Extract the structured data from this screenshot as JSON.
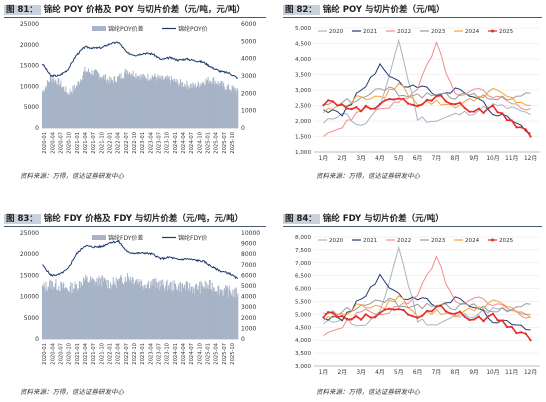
{
  "source_label": "资料来源：万得，信达证券研发中心",
  "months": [
    "1月",
    "2月",
    "3月",
    "4月",
    "5月",
    "6月",
    "7月",
    "8月",
    "9月",
    "10月",
    "11月",
    "12月"
  ],
  "years": [
    "2020",
    "2021",
    "2022",
    "2023",
    "2024",
    "2025"
  ],
  "year_colors": {
    "2020": "#aab3c2",
    "2021": "#1f3a6e",
    "2022": "#f28c8c",
    "2023": "#9a9a9a",
    "2024": "#f2a23a",
    "2025": "#e52b2b"
  },
  "panels": [
    {
      "id": "p81",
      "label": "图 81：",
      "title": "锦纶 POY 价格及 POY 与切片价差（元/吨，元/吨）"
    },
    {
      "id": "p82",
      "label": "图 82：",
      "title": "锦纶 POY 与切片价差（元/吨）"
    },
    {
      "id": "p83",
      "label": "图 83：",
      "title": "锦纶 FDY 价格及 FDY 与切片价差（元/吨，元/吨）"
    },
    {
      "id": "p84",
      "label": "图 84：",
      "title": "锦纶 FDY 与切片价差（元/吨）"
    }
  ],
  "chart_data": [
    {
      "type": "area+line",
      "legend": [
        "锦纶POY价差",
        "锦纶POY价"
      ],
      "x": [
        "2020-01",
        "2020-04",
        "2020-07",
        "2020-10",
        "2021-01",
        "2021-04",
        "2021-07",
        "2021-10",
        "2022-01",
        "2022-04",
        "2022-07",
        "2022-10",
        "2023-01",
        "2023-04",
        "2023-07",
        "2023-10",
        "2024-01",
        "2024-04",
        "2024-07",
        "2024-10",
        "2025-01",
        "2025-04",
        "2025-07",
        "2025-10"
      ],
      "series": [
        {
          "name": "锦纶POY价差",
          "axis": "right",
          "values": [
            2100,
            2900,
            2600,
            2000,
            2400,
            3300,
            3200,
            3000,
            2700,
            2900,
            3300,
            3100,
            2900,
            3000,
            2800,
            2800,
            2600,
            2500,
            2400,
            2700,
            2800,
            2500,
            2300,
            2200
          ]
        },
        {
          "name": "锦纶POY价",
          "axis": "left",
          "values": [
            15500,
            12500,
            12600,
            14000,
            17500,
            19500,
            19200,
            19300,
            20300,
            20600,
            18000,
            17500,
            18000,
            17800,
            16400,
            16900,
            16300,
            16600,
            16200,
            15800,
            14500,
            13600,
            13200,
            12000
          ]
        }
      ],
      "ylim_left": [
        0,
        25000
      ],
      "yticks_left": [
        0,
        5000,
        10000,
        15000,
        20000,
        25000
      ],
      "ylim_right": [
        0,
        6000
      ],
      "yticks_right": [
        0,
        1000,
        2000,
        3000,
        4000,
        5000,
        6000
      ]
    },
    {
      "type": "line",
      "categories": [
        "1月",
        "2月",
        "3月",
        "4月",
        "5月",
        "6月",
        "7月",
        "8月",
        "9月",
        "10月",
        "11月",
        "12月"
      ],
      "series": [
        {
          "name": "2020",
          "values": [
            1900,
            2300,
            1800,
            2400,
            4600,
            2100,
            2000,
            2200,
            2300,
            2500,
            2400,
            2200
          ]
        },
        {
          "name": "2021",
          "values": [
            2400,
            2200,
            3000,
            3800,
            3200,
            3100,
            2900,
            3000,
            2800,
            2300,
            2000,
            1600
          ]
        },
        {
          "name": "2022",
          "values": [
            1600,
            1800,
            2400,
            2400,
            2600,
            3000,
            4500,
            2800,
            3000,
            2800,
            2600,
            2400
          ]
        },
        {
          "name": "2023",
          "values": [
            2500,
            2600,
            2700,
            3100,
            2900,
            2800,
            2900,
            2800,
            2800,
            2700,
            2800,
            2900
          ]
        },
        {
          "name": "2024",
          "values": [
            2300,
            2500,
            2800,
            2700,
            3200,
            2600,
            2600,
            2500,
            2700,
            3000,
            2700,
            2500
          ]
        },
        {
          "name": "2025",
          "values": [
            2600,
            2500,
            2400,
            2500,
            2800,
            2500,
            2800,
            2600,
            2300,
            2400,
            2000,
            1500
          ]
        }
      ],
      "ylim": [
        1000,
        5000
      ],
      "yticks": [
        1000,
        1500,
        2000,
        2500,
        3000,
        3500,
        4000,
        4500,
        5000
      ]
    },
    {
      "type": "area+line",
      "legend": [
        "锦纶FDY价差",
        "锦纶FDY价"
      ],
      "x": [
        "2020-01",
        "2020-04",
        "2020-07",
        "2020-10",
        "2021-01",
        "2021-04",
        "2021-07",
        "2021-10",
        "2022-01",
        "2022-04",
        "2022-07",
        "2022-10",
        "2023-01",
        "2023-04",
        "2023-07",
        "2023-10",
        "2024-01",
        "2024-04",
        "2024-07",
        "2024-10",
        "2025-01",
        "2025-04",
        "2025-07",
        "2025-10"
      ],
      "series": [
        {
          "name": "锦纶FDY价差",
          "axis": "right",
          "values": [
            4800,
            5200,
            5000,
            4700,
            5000,
            5600,
            5400,
            5500,
            5200,
            5400,
            5900,
            5600,
            5200,
            5300,
            5100,
            5000,
            5000,
            4900,
            4800,
            5000,
            5000,
            4600,
            4500,
            4300
          ]
        },
        {
          "name": "锦纶FDY价",
          "axis": "left",
          "values": [
            17500,
            15000,
            15200,
            16500,
            20000,
            22000,
            21700,
            21800,
            22800,
            23000,
            20500,
            20200,
            20300,
            20000,
            18900,
            19300,
            18700,
            18900,
            18600,
            18300,
            17000,
            16000,
            15500,
            14200
          ]
        }
      ],
      "ylim_left": [
        0,
        25000
      ],
      "yticks_left": [
        0,
        5000,
        10000,
        15000,
        20000,
        25000
      ],
      "ylim_right": [
        0,
        10000
      ],
      "yticks_right": [
        0,
        1000,
        2000,
        3000,
        4000,
        5000,
        6000,
        7000,
        8000,
        9000,
        10000
      ]
    },
    {
      "type": "line",
      "categories": [
        "1月",
        "2月",
        "3月",
        "4月",
        "5月",
        "6月",
        "7月",
        "8月",
        "9月",
        "10月",
        "11月",
        "12月"
      ],
      "series": [
        {
          "name": "2020",
          "values": [
            4600,
            4900,
            4500,
            5000,
            7600,
            4800,
            4600,
            4900,
            5000,
            5200,
            5100,
            4900
          ]
        },
        {
          "name": "2021",
          "values": [
            4900,
            4800,
            5600,
            6500,
            5700,
            5600,
            5400,
            5600,
            5300,
            4800,
            4600,
            4400
          ]
        },
        {
          "name": "2022",
          "values": [
            4300,
            4500,
            5200,
            5000,
            5300,
            5700,
            7200,
            5400,
            5600,
            5400,
            5200,
            4900
          ]
        },
        {
          "name": "2023",
          "values": [
            5000,
            5100,
            5300,
            5600,
            5400,
            5300,
            5400,
            5300,
            5300,
            5100,
            5300,
            5400
          ]
        },
        {
          "name": "2024",
          "values": [
            4800,
            5000,
            5400,
            5200,
            5700,
            5000,
            5100,
            5000,
            5200,
            5500,
            5200,
            5000
          ]
        },
        {
          "name": "2025",
          "values": [
            5000,
            4900,
            4900,
            5000,
            5300,
            4900,
            5300,
            5100,
            4800,
            4900,
            4500,
            4000
          ]
        }
      ],
      "ylim": [
        3000,
        8000
      ],
      "yticks": [
        3000,
        3500,
        4000,
        4500,
        5000,
        5500,
        6000,
        6500,
        7000,
        7500,
        8000
      ]
    }
  ]
}
